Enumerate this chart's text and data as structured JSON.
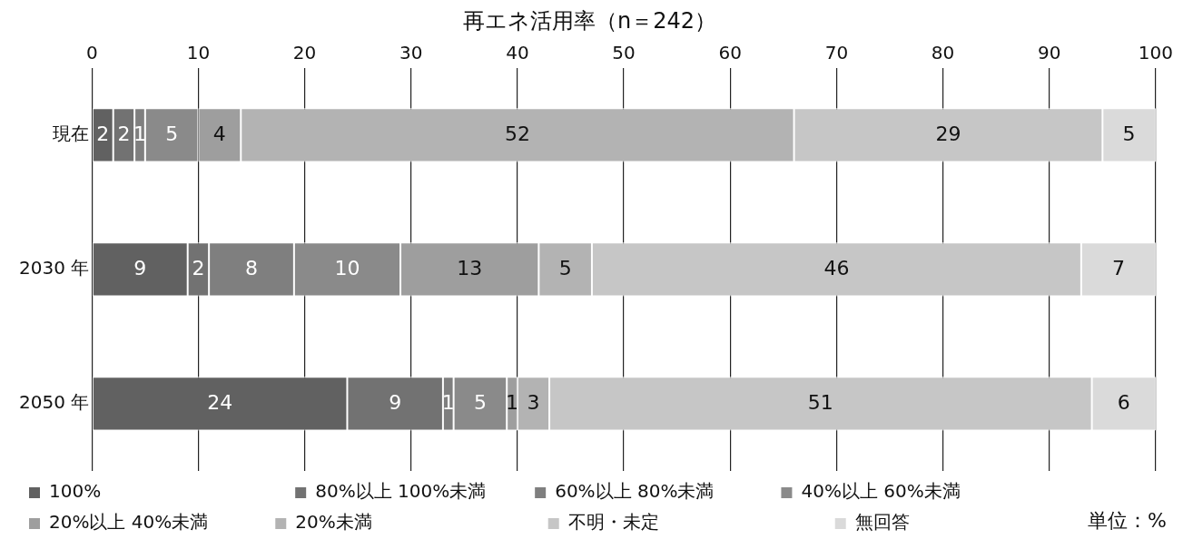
{
  "chart_data": {
    "type": "bar",
    "orientation": "horizontal",
    "stacked": true,
    "title": "再エネ活用率（n＝242）",
    "categories": [
      "現在",
      "2030 年",
      "2050 年"
    ],
    "series": [
      {
        "name": "100%",
        "color": "#616161",
        "values": [
          2,
          9,
          24
        ]
      },
      {
        "name": "80%以上 100%未満",
        "color": "#727272",
        "values": [
          2,
          2,
          9
        ]
      },
      {
        "name": "60%以上 80%未満",
        "color": "#7f7f7f",
        "values": [
          1,
          8,
          1
        ]
      },
      {
        "name": "40%以上 60%未満",
        "color": "#8a8a8a",
        "values": [
          5,
          10,
          5
        ]
      },
      {
        "name": "20%以上 40%未満",
        "color": "#9e9e9e",
        "values": [
          4,
          13,
          1
        ]
      },
      {
        "name": "20%未満",
        "color": "#b3b3b3",
        "values": [
          52,
          5,
          3
        ]
      },
      {
        "name": "不明・未定",
        "color": "#c6c6c6",
        "values": [
          29,
          46,
          51
        ]
      },
      {
        "name": "無回答",
        "color": "#dadada",
        "values": [
          5,
          7,
          6
        ]
      }
    ],
    "xlim": [
      0,
      100
    ],
    "xticks": [
      0,
      10,
      20,
      30,
      40,
      50,
      60,
      70,
      80,
      90,
      100
    ],
    "grid": "x",
    "data_labels": true,
    "legend": "bottom",
    "annotations": [
      "単位：%"
    ]
  }
}
